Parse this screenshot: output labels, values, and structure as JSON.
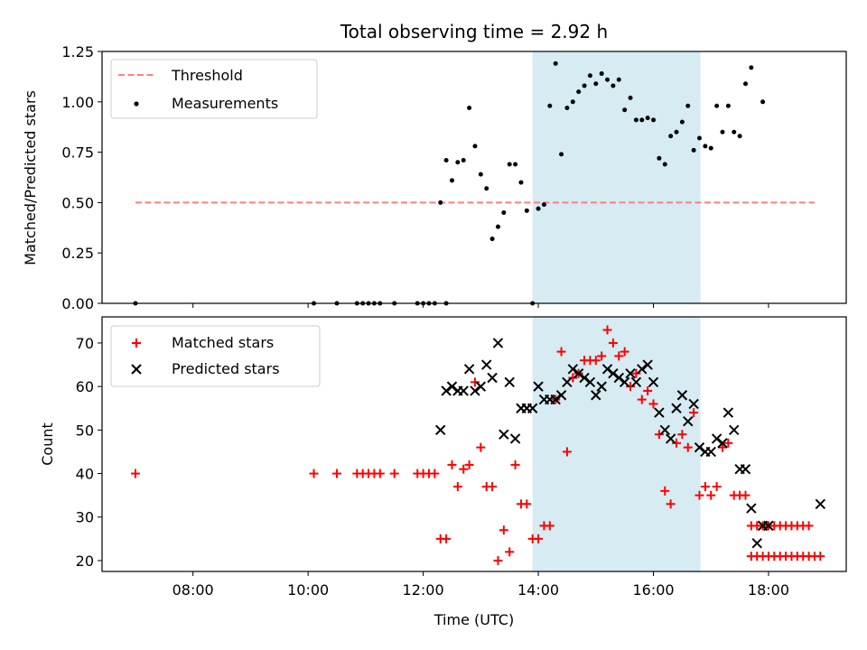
{
  "chart_data": [
    {
      "type": "scatter",
      "title": "Total observing time = 2.92 h",
      "xlabel": "",
      "ylabel": "Matched/Predicted stars",
      "x_axis": "Time (UTC)",
      "xlim_hours": [
        6.42,
        19.35
      ],
      "ylim": [
        0,
        1.25
      ],
      "yticks": [
        "0.00",
        "0.25",
        "0.50",
        "0.75",
        "1.00",
        "1.25"
      ],
      "shaded_interval": [
        "13:54",
        "16:49"
      ],
      "threshold": {
        "name": "Threshold",
        "value": 0.5,
        "x_range": [
          "07:00",
          "18:48"
        ],
        "color": "#ff7f7f",
        "style": "dashed"
      },
      "legend": [
        "Threshold",
        "Measurements"
      ],
      "legend_position": "upper left",
      "series": [
        {
          "name": "Measurements",
          "color": "#000000",
          "marker": "dot",
          "points": [
            [
              "07:00",
              0
            ],
            [
              "10:06",
              0
            ],
            [
              "10:30",
              0
            ],
            [
              "10:51",
              0
            ],
            [
              "10:57",
              0
            ],
            [
              "11:03",
              0
            ],
            [
              "11:09",
              0
            ],
            [
              "11:15",
              0
            ],
            [
              "11:30",
              0
            ],
            [
              "11:54",
              0
            ],
            [
              "12:00",
              0
            ],
            [
              "12:06",
              0
            ],
            [
              "12:12",
              0
            ],
            [
              "12:18",
              0.5
            ],
            [
              "12:24",
              0
            ],
            [
              "12:24",
              0.71
            ],
            [
              "12:30",
              0.61
            ],
            [
              "12:36",
              0.7
            ],
            [
              "12:42",
              0.71
            ],
            [
              "12:48",
              0.97
            ],
            [
              "12:54",
              0.78
            ],
            [
              "13:00",
              0.64
            ],
            [
              "13:06",
              0.57
            ],
            [
              "13:12",
              0.32
            ],
            [
              "13:18",
              0.38
            ],
            [
              "13:24",
              0.45
            ],
            [
              "13:30",
              0.69
            ],
            [
              "13:36",
              0.69
            ],
            [
              "13:42",
              0.6
            ],
            [
              "13:48",
              0.46
            ],
            [
              "13:54",
              0
            ],
            [
              "14:00",
              0.47
            ],
            [
              "14:06",
              0.49
            ],
            [
              "14:12",
              0.98
            ],
            [
              "14:18",
              1.19
            ],
            [
              "14:24",
              0.74
            ],
            [
              "14:30",
              0.97
            ],
            [
              "14:36",
              1.0
            ],
            [
              "14:42",
              1.05
            ],
            [
              "14:48",
              1.08
            ],
            [
              "14:54",
              1.13
            ],
            [
              "15:00",
              1.09
            ],
            [
              "15:06",
              1.14
            ],
            [
              "15:12",
              1.11
            ],
            [
              "15:18",
              1.08
            ],
            [
              "15:24",
              1.11
            ],
            [
              "15:30",
              0.96
            ],
            [
              "15:36",
              1.02
            ],
            [
              "15:42",
              0.91
            ],
            [
              "15:48",
              0.91
            ],
            [
              "15:54",
              0.92
            ],
            [
              "16:00",
              0.91
            ],
            [
              "16:06",
              0.72
            ],
            [
              "16:12",
              0.69
            ],
            [
              "16:18",
              0.83
            ],
            [
              "16:24",
              0.85
            ],
            [
              "16:30",
              0.9
            ],
            [
              "16:36",
              0.98
            ],
            [
              "16:42",
              0.76
            ],
            [
              "16:48",
              0.82
            ],
            [
              "16:54",
              0.78
            ],
            [
              "17:00",
              0.77
            ],
            [
              "17:06",
              0.98
            ],
            [
              "17:12",
              0.85
            ],
            [
              "17:18",
              0.98
            ],
            [
              "17:24",
              0.85
            ],
            [
              "17:30",
              0.83
            ],
            [
              "17:36",
              1.09
            ],
            [
              "17:42",
              1.17
            ],
            [
              "17:54",
              1.0
            ]
          ]
        }
      ]
    },
    {
      "type": "scatter",
      "title": "",
      "xlabel": "Time (UTC)",
      "ylabel": "Count",
      "xlim_hours": [
        6.42,
        19.35
      ],
      "ylim": [
        17.5,
        76
      ],
      "yticks": [
        "20",
        "30",
        "40",
        "50",
        "60",
        "70"
      ],
      "xticks": [
        "08:00",
        "10:00",
        "12:00",
        "14:00",
        "16:00",
        "18:00"
      ],
      "shaded_interval": [
        "13:54",
        "16:49"
      ],
      "legend": [
        "Matched stars",
        "Predicted stars"
      ],
      "legend_position": "upper left",
      "series": [
        {
          "name": "Matched stars",
          "color": "#ff0000",
          "marker": "plus",
          "points": [
            [
              "07:00",
              40
            ],
            [
              "10:06",
              40
            ],
            [
              "10:30",
              40
            ],
            [
              "10:51",
              40
            ],
            [
              "10:57",
              40
            ],
            [
              "11:03",
              40
            ],
            [
              "11:09",
              40
            ],
            [
              "11:15",
              40
            ],
            [
              "11:30",
              40
            ],
            [
              "11:54",
              40
            ],
            [
              "12:00",
              40
            ],
            [
              "12:06",
              40
            ],
            [
              "12:12",
              40
            ],
            [
              "12:18",
              25
            ],
            [
              "12:24",
              25
            ],
            [
              "12:30",
              42
            ],
            [
              "12:36",
              37
            ],
            [
              "12:42",
              41
            ],
            [
              "12:48",
              42
            ],
            [
              "12:54",
              61
            ],
            [
              "13:00",
              46
            ],
            [
              "13:06",
              37
            ],
            [
              "13:12",
              37
            ],
            [
              "13:18",
              20
            ],
            [
              "13:24",
              27
            ],
            [
              "13:30",
              22
            ],
            [
              "13:36",
              42
            ],
            [
              "13:42",
              33
            ],
            [
              "13:48",
              33
            ],
            [
              "13:54",
              25
            ],
            [
              "14:00",
              25
            ],
            [
              "14:06",
              28
            ],
            [
              "14:12",
              28
            ],
            [
              "14:18",
              57
            ],
            [
              "14:24",
              68
            ],
            [
              "14:30",
              45
            ],
            [
              "14:36",
              62
            ],
            [
              "14:42",
              63
            ],
            [
              "14:48",
              66
            ],
            [
              "14:54",
              66
            ],
            [
              "15:00",
              66
            ],
            [
              "15:06",
              67
            ],
            [
              "15:12",
              73
            ],
            [
              "15:18",
              70
            ],
            [
              "15:24",
              67
            ],
            [
              "15:30",
              68
            ],
            [
              "15:36",
              60
            ],
            [
              "15:42",
              63
            ],
            [
              "15:48",
              57
            ],
            [
              "15:54",
              59
            ],
            [
              "16:00",
              56
            ],
            [
              "16:06",
              49
            ],
            [
              "16:12",
              36
            ],
            [
              "16:18",
              33
            ],
            [
              "16:24",
              47
            ],
            [
              "16:30",
              49
            ],
            [
              "16:36",
              46
            ],
            [
              "16:42",
              54
            ],
            [
              "16:48",
              35
            ],
            [
              "16:54",
              37
            ],
            [
              "17:00",
              35
            ],
            [
              "17:06",
              37
            ],
            [
              "17:12",
              46
            ],
            [
              "17:18",
              47
            ],
            [
              "17:24",
              35
            ],
            [
              "17:30",
              35
            ],
            [
              "17:36",
              35
            ],
            [
              "17:42",
              28
            ],
            [
              "17:48",
              28
            ],
            [
              "17:54",
              28
            ],
            [
              "18:00",
              28
            ],
            [
              "18:06",
              28
            ],
            [
              "18:12",
              28
            ],
            [
              "18:18",
              28
            ],
            [
              "18:24",
              28
            ],
            [
              "18:30",
              28
            ],
            [
              "18:36",
              28
            ],
            [
              "18:42",
              28
            ],
            [
              "17:42",
              21
            ],
            [
              "17:48",
              21
            ],
            [
              "17:54",
              21
            ],
            [
              "18:00",
              21
            ],
            [
              "18:06",
              21
            ],
            [
              "18:12",
              21
            ],
            [
              "18:18",
              21
            ],
            [
              "18:24",
              21
            ],
            [
              "18:30",
              21
            ],
            [
              "18:36",
              21
            ],
            [
              "18:42",
              21
            ],
            [
              "18:48",
              21
            ],
            [
              "18:54",
              21
            ]
          ]
        },
        {
          "name": "Predicted stars",
          "color": "#000000",
          "marker": "cross",
          "points": [
            [
              "12:18",
              50
            ],
            [
              "12:24",
              59
            ],
            [
              "12:30",
              60
            ],
            [
              "12:36",
              59
            ],
            [
              "12:42",
              59
            ],
            [
              "12:48",
              64
            ],
            [
              "12:54",
              59
            ],
            [
              "13:00",
              60
            ],
            [
              "13:06",
              65
            ],
            [
              "13:12",
              62
            ],
            [
              "13:18",
              70
            ],
            [
              "13:24",
              49
            ],
            [
              "13:30",
              61
            ],
            [
              "13:36",
              48
            ],
            [
              "13:42",
              55
            ],
            [
              "13:48",
              55
            ],
            [
              "13:54",
              55
            ],
            [
              "14:00",
              60
            ],
            [
              "14:06",
              57
            ],
            [
              "14:12",
              57
            ],
            [
              "14:18",
              57
            ],
            [
              "14:24",
              58
            ],
            [
              "14:30",
              61
            ],
            [
              "14:36",
              64
            ],
            [
              "14:42",
              63
            ],
            [
              "14:48",
              62
            ],
            [
              "14:54",
              61
            ],
            [
              "15:00",
              58
            ],
            [
              "15:06",
              60
            ],
            [
              "15:12",
              64
            ],
            [
              "15:18",
              63
            ],
            [
              "15:24",
              62
            ],
            [
              "15:30",
              61
            ],
            [
              "15:36",
              63
            ],
            [
              "15:42",
              61
            ],
            [
              "15:48",
              64
            ],
            [
              "15:54",
              65
            ],
            [
              "16:00",
              61
            ],
            [
              "16:06",
              54
            ],
            [
              "16:12",
              50
            ],
            [
              "16:18",
              48
            ],
            [
              "16:24",
              55
            ],
            [
              "16:30",
              58
            ],
            [
              "16:36",
              52
            ],
            [
              "16:42",
              56
            ],
            [
              "16:48",
              46
            ],
            [
              "16:54",
              45
            ],
            [
              "17:00",
              45
            ],
            [
              "17:06",
              48
            ],
            [
              "17:12",
              47
            ],
            [
              "17:18",
              54
            ],
            [
              "17:24",
              50
            ],
            [
              "17:30",
              41
            ],
            [
              "17:36",
              41
            ],
            [
              "17:42",
              32
            ],
            [
              "17:48",
              24
            ],
            [
              "17:54",
              28
            ],
            [
              "18:00",
              28
            ],
            [
              "18:54",
              33
            ]
          ]
        }
      ]
    }
  ]
}
